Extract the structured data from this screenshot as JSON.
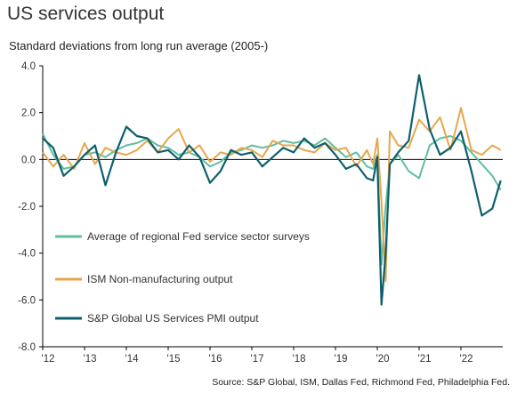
{
  "title": "US services output",
  "source": "Source: S&P Global, ISM, Dallas Fed,  Richmond Fed, Philadelphia Fed.",
  "colors": {
    "regional": "#5fbf9f",
    "ism": "#e8a64c",
    "pmi": "#0e5f6e",
    "axis": "#000000",
    "grid": "#d9d9d9"
  },
  "chart_data": {
    "type": "line",
    "title": "US services output",
    "ylabel": "Standard deviations from long run average (2005-)",
    "ylim": [
      -8.0,
      4.0
    ],
    "yticks": [
      "4.0",
      "2.0",
      "0.0",
      "-2.0",
      "-4.0",
      "-6.0",
      "-8.0"
    ],
    "ytick_values": [
      4,
      2,
      0,
      -2,
      -4,
      -6,
      -8
    ],
    "xlim": [
      2012.0,
      2023.0
    ],
    "xticks": [
      "'12",
      "'13",
      "'14",
      "'15",
      "'16",
      "'17",
      "'18",
      "'19",
      "'20",
      "'21",
      "'22"
    ],
    "xtick_values": [
      2012,
      2013,
      2014,
      2015,
      2016,
      2017,
      2018,
      2019,
      2020,
      2021,
      2022
    ],
    "legend_position": "bottom-left",
    "series": [
      {
        "name": "Average of regional Fed service sector surveys",
        "key": "regional",
        "x": [
          2012.0,
          2012.25,
          2012.5,
          2012.75,
          2013.0,
          2013.25,
          2013.5,
          2013.75,
          2014.0,
          2014.25,
          2014.5,
          2014.75,
          2015.0,
          2015.25,
          2015.5,
          2015.75,
          2016.0,
          2016.25,
          2016.5,
          2016.75,
          2017.0,
          2017.25,
          2017.5,
          2017.75,
          2018.0,
          2018.25,
          2018.5,
          2018.75,
          2019.0,
          2019.25,
          2019.5,
          2019.75,
          2019.9,
          2020.0,
          2020.1,
          2020.2,
          2020.3,
          2020.5,
          2020.75,
          2021.0,
          2021.25,
          2021.5,
          2021.75,
          2022.0,
          2022.25,
          2022.5,
          2022.75,
          2022.95
        ],
        "y": [
          1.1,
          0.2,
          -0.4,
          -0.3,
          0.2,
          0.3,
          0.1,
          0.4,
          0.6,
          0.7,
          0.9,
          0.6,
          0.5,
          0.2,
          0.3,
          0.1,
          -0.3,
          -0.1,
          0.3,
          0.4,
          0.6,
          0.5,
          0.6,
          0.8,
          0.7,
          0.8,
          0.6,
          0.9,
          0.5,
          0.1,
          0.3,
          -0.3,
          -0.4,
          0.2,
          -4.5,
          -2.0,
          -0.2,
          0.2,
          -0.5,
          -0.8,
          0.6,
          0.9,
          1.0,
          0.8,
          0.3,
          -0.2,
          -0.7,
          -1.3
        ]
      },
      {
        "name": "ISM Non-manufacturing output",
        "key": "ism",
        "x": [
          2012.0,
          2012.25,
          2012.5,
          2012.75,
          2013.0,
          2013.25,
          2013.5,
          2013.75,
          2014.0,
          2014.25,
          2014.5,
          2014.75,
          2015.0,
          2015.25,
          2015.5,
          2015.75,
          2016.0,
          2016.25,
          2016.5,
          2016.75,
          2017.0,
          2017.25,
          2017.5,
          2017.75,
          2018.0,
          2018.25,
          2018.5,
          2018.75,
          2019.0,
          2019.25,
          2019.5,
          2019.75,
          2019.9,
          2020.0,
          2020.1,
          2020.2,
          2020.3,
          2020.5,
          2020.75,
          2021.0,
          2021.25,
          2021.5,
          2021.75,
          2022.0,
          2022.25,
          2022.5,
          2022.75,
          2022.95
        ],
        "y": [
          0.3,
          -0.3,
          0.2,
          -0.4,
          0.7,
          -0.2,
          0.5,
          0.3,
          0.2,
          0.4,
          0.8,
          0.3,
          0.9,
          1.3,
          0.3,
          0.6,
          -0.1,
          0.3,
          0.2,
          0.5,
          0.4,
          0.1,
          0.8,
          0.6,
          0.6,
          0.4,
          0.3,
          0.7,
          0.4,
          0.5,
          -0.3,
          0.4,
          -0.2,
          0.9,
          -1.8,
          -5.2,
          1.2,
          0.6,
          0.5,
          1.7,
          1.2,
          1.8,
          0.4,
          2.2,
          0.4,
          0.2,
          0.6,
          0.4
        ]
      },
      {
        "name": "S&P Global US Services PMI  output",
        "key": "pmi",
        "x": [
          2012.0,
          2012.25,
          2012.5,
          2012.75,
          2013.0,
          2013.25,
          2013.5,
          2013.75,
          2014.0,
          2014.25,
          2014.5,
          2014.75,
          2015.0,
          2015.25,
          2015.5,
          2015.75,
          2016.0,
          2016.25,
          2016.5,
          2016.75,
          2017.0,
          2017.25,
          2017.5,
          2017.75,
          2018.0,
          2018.25,
          2018.5,
          2018.75,
          2019.0,
          2019.25,
          2019.5,
          2019.75,
          2019.9,
          2020.0,
          2020.1,
          2020.2,
          2020.3,
          2020.5,
          2020.75,
          2021.0,
          2021.25,
          2021.5,
          2021.75,
          2022.0,
          2022.25,
          2022.5,
          2022.75,
          2022.95
        ],
        "y": [
          0.9,
          0.5,
          -0.7,
          -0.3,
          0.2,
          0.6,
          -1.1,
          0.3,
          1.4,
          1.0,
          0.9,
          0.3,
          0.4,
          0.0,
          0.6,
          0.1,
          -1.0,
          -0.5,
          0.4,
          0.2,
          0.3,
          -0.3,
          0.1,
          0.5,
          0.3,
          0.9,
          0.5,
          0.7,
          0.2,
          -0.4,
          -0.2,
          -0.8,
          -0.9,
          0.1,
          -6.2,
          -4.0,
          -0.2,
          0.3,
          0.8,
          3.6,
          1.3,
          0.2,
          0.5,
          1.2,
          -0.5,
          -2.4,
          -2.1,
          -0.9
        ]
      }
    ]
  }
}
